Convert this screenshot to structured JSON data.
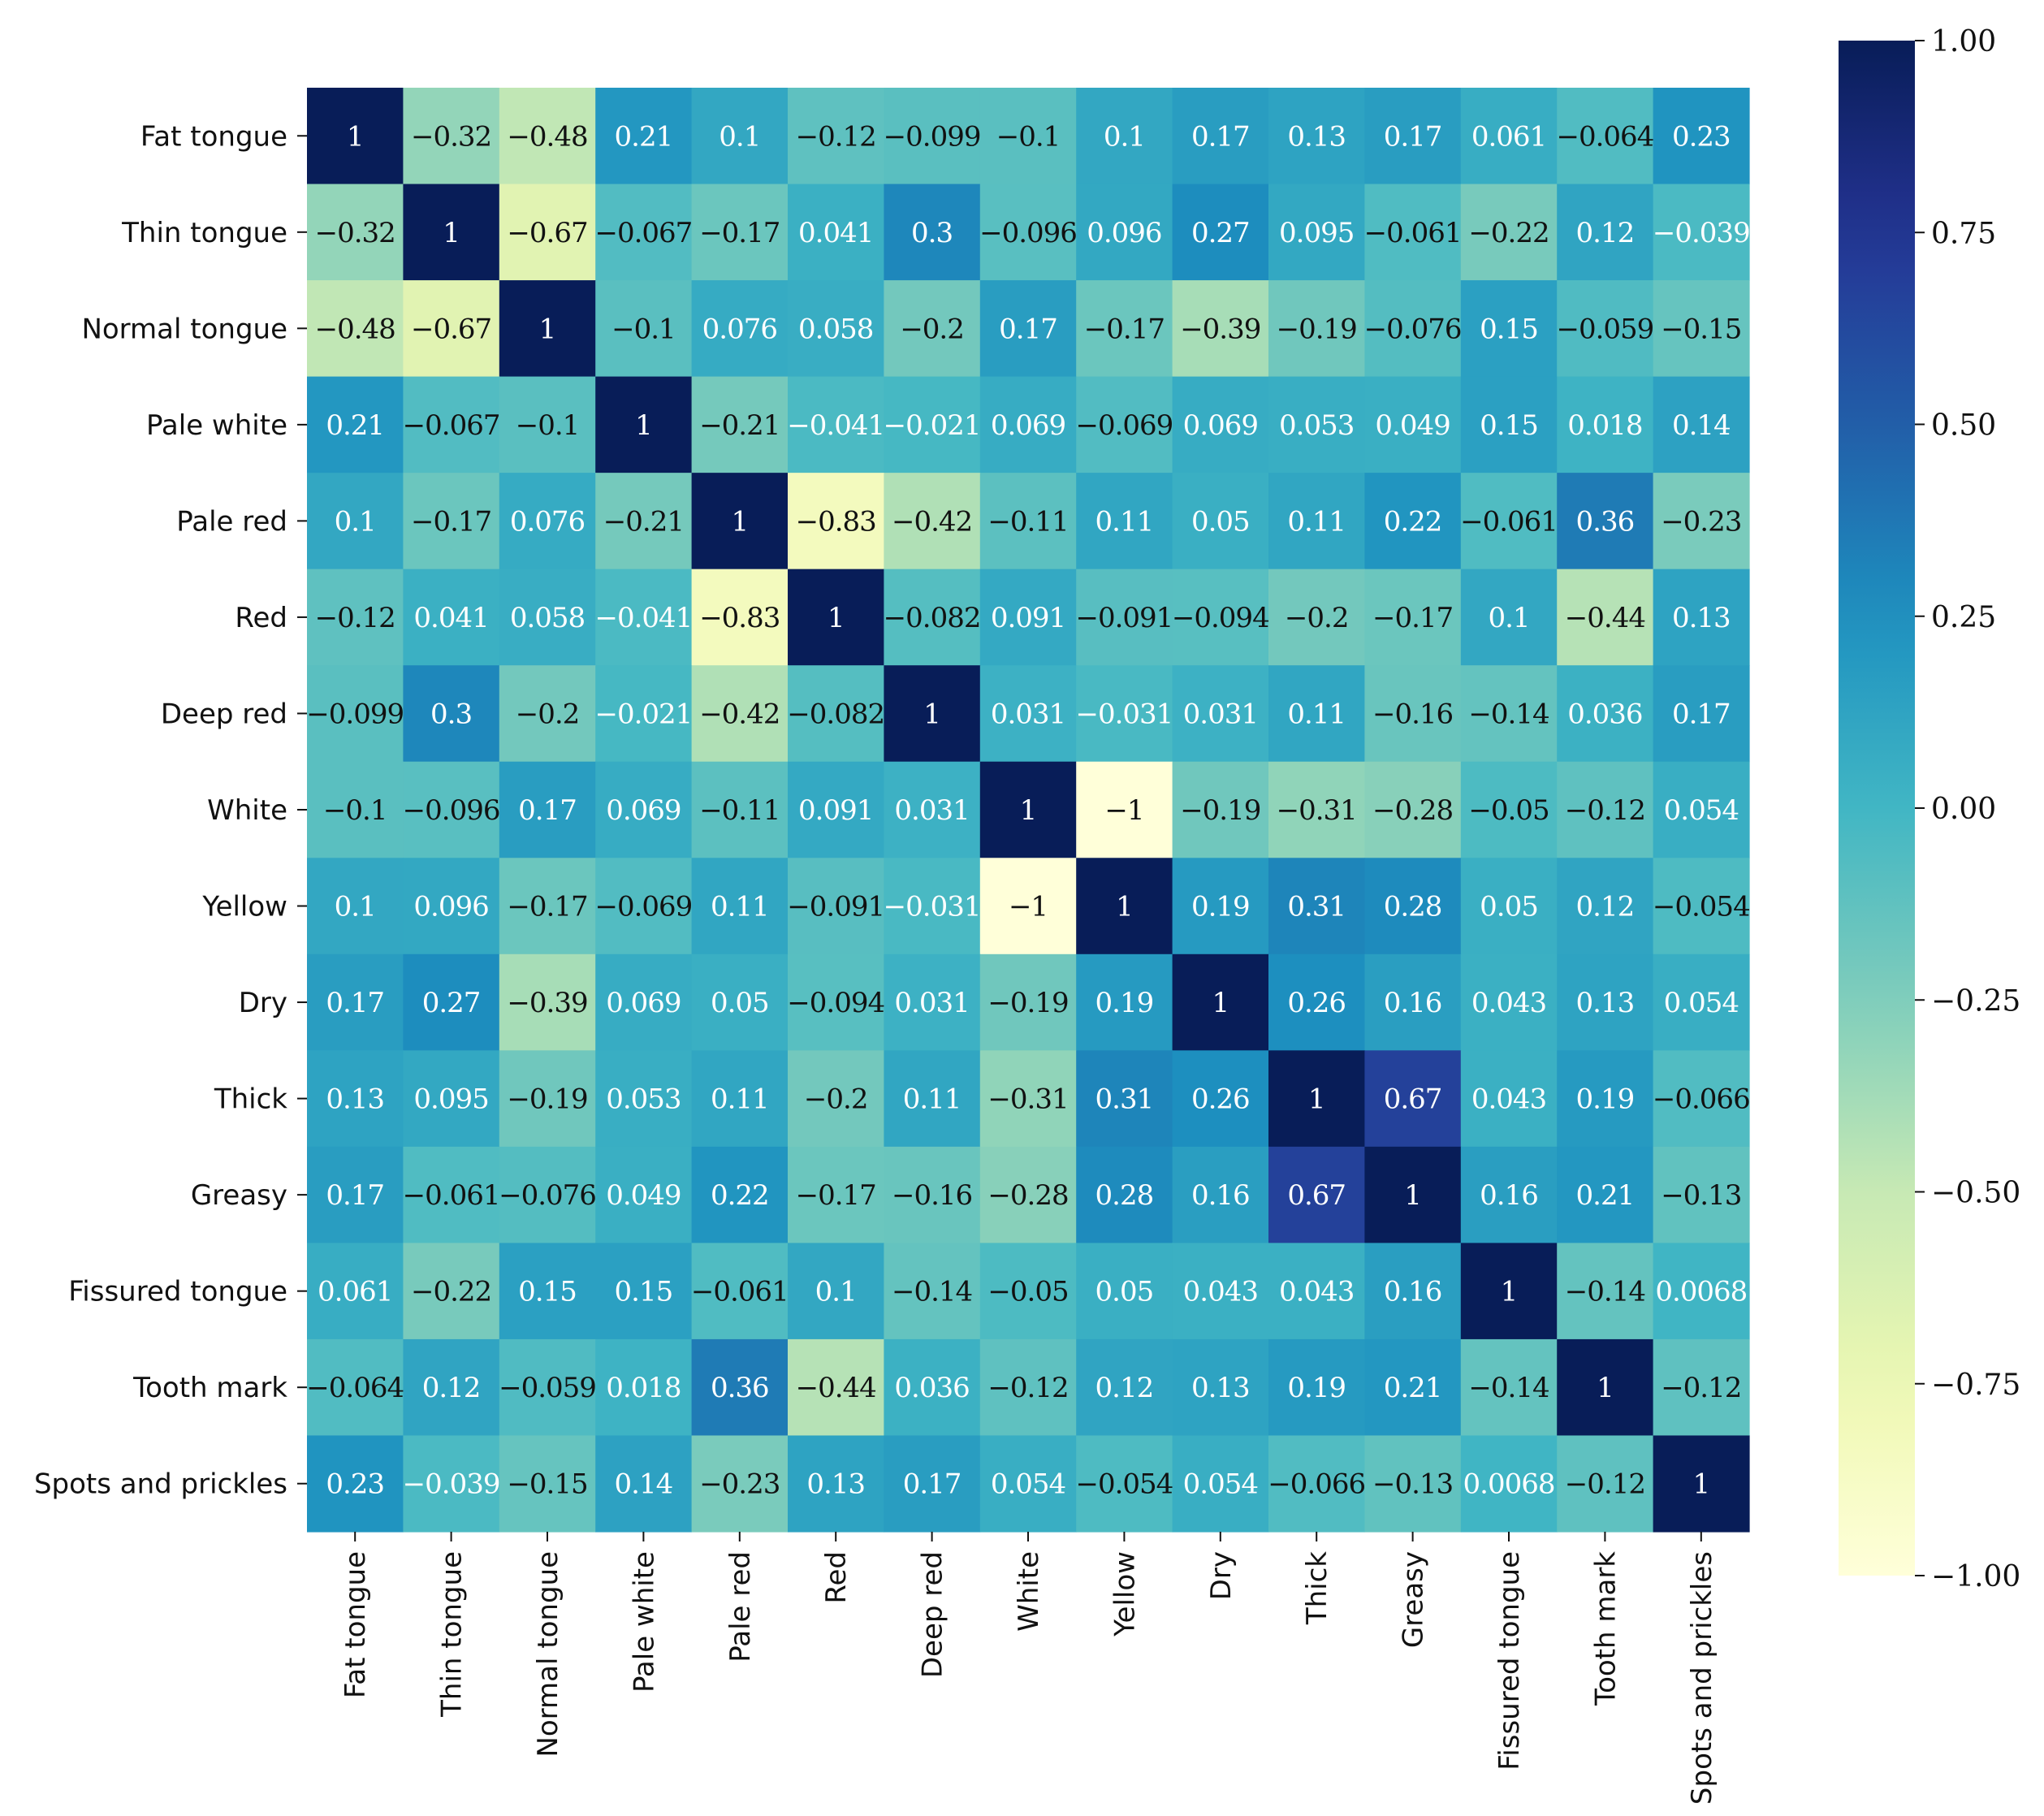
{
  "chart_data": {
    "type": "heatmap",
    "title": "",
    "xlabel": "",
    "ylabel": "",
    "labels": [
      "Fat tongue",
      "Thin tongue",
      "Normal tongue",
      "Pale white",
      "Pale red",
      "Red",
      "Deep red",
      "White",
      "Yellow",
      "Dry",
      "Thick",
      "Greasy",
      "Fissured tongue",
      "Tooth mark",
      "Spots and prickles"
    ],
    "values": [
      [
        1,
        -0.32,
        -0.48,
        0.21,
        0.1,
        -0.12,
        -0.099,
        -0.1,
        0.1,
        0.17,
        0.13,
        0.17,
        0.061,
        -0.064,
        0.23
      ],
      [
        -0.32,
        1,
        -0.67,
        -0.067,
        -0.17,
        0.041,
        0.3,
        -0.096,
        0.096,
        0.27,
        0.095,
        -0.061,
        -0.22,
        0.12,
        -0.039
      ],
      [
        -0.48,
        -0.67,
        1,
        -0.1,
        0.076,
        0.058,
        -0.2,
        0.17,
        -0.17,
        -0.39,
        -0.19,
        -0.076,
        0.15,
        -0.059,
        -0.15
      ],
      [
        0.21,
        -0.067,
        -0.1,
        1,
        -0.21,
        -0.041,
        -0.021,
        0.069,
        -0.069,
        0.069,
        0.053,
        0.049,
        0.15,
        0.018,
        0.14
      ],
      [
        0.1,
        -0.17,
        0.076,
        -0.21,
        1,
        -0.83,
        -0.42,
        -0.11,
        0.11,
        0.05,
        0.11,
        0.22,
        -0.061,
        0.36,
        -0.23
      ],
      [
        -0.12,
        0.041,
        0.058,
        -0.041,
        -0.83,
        1,
        -0.082,
        0.091,
        -0.091,
        -0.094,
        -0.2,
        -0.17,
        0.1,
        -0.44,
        0.13
      ],
      [
        -0.099,
        0.3,
        -0.2,
        -0.021,
        -0.42,
        -0.082,
        1,
        0.031,
        -0.031,
        0.031,
        0.11,
        -0.16,
        -0.14,
        0.036,
        0.17
      ],
      [
        -0.1,
        -0.096,
        0.17,
        0.069,
        -0.11,
        0.091,
        0.031,
        1,
        -1,
        -0.19,
        -0.31,
        -0.28,
        -0.05,
        -0.12,
        0.054
      ],
      [
        0.1,
        0.096,
        -0.17,
        -0.069,
        0.11,
        -0.091,
        -0.031,
        -1,
        1,
        0.19,
        0.31,
        0.28,
        0.05,
        0.12,
        -0.054
      ],
      [
        0.17,
        0.27,
        -0.39,
        0.069,
        0.05,
        -0.094,
        0.031,
        -0.19,
        0.19,
        1,
        0.26,
        0.16,
        0.043,
        0.13,
        0.054
      ],
      [
        0.13,
        0.095,
        -0.19,
        0.053,
        0.11,
        -0.2,
        0.11,
        -0.31,
        0.31,
        0.26,
        1,
        0.67,
        0.043,
        0.19,
        -0.066
      ],
      [
        0.17,
        -0.061,
        -0.076,
        0.049,
        0.22,
        -0.17,
        -0.16,
        -0.28,
        0.28,
        0.16,
        0.67,
        1,
        0.16,
        0.21,
        -0.13
      ],
      [
        0.061,
        -0.22,
        0.15,
        0.15,
        -0.061,
        0.1,
        -0.14,
        -0.05,
        0.05,
        0.043,
        0.043,
        0.16,
        1,
        -0.14,
        0.0068
      ],
      [
        -0.064,
        0.12,
        -0.059,
        0.018,
        0.36,
        -0.44,
        0.036,
        -0.12,
        0.12,
        0.13,
        0.19,
        0.21,
        -0.14,
        1,
        -0.12
      ],
      [
        0.23,
        -0.039,
        -0.15,
        0.14,
        -0.23,
        0.13,
        0.17,
        0.054,
        -0.054,
        0.054,
        -0.066,
        -0.13,
        0.0068,
        -0.12,
        1
      ]
    ],
    "colormap": "YlGnBu",
    "color_range": [
      -1,
      1
    ],
    "colorbar_ticks": [
      "1.00",
      "0.75",
      "0.50",
      "0.25",
      "0.00",
      "−0.25",
      "−0.50",
      "−0.75",
      "−1.00"
    ],
    "colorbar_tick_values": [
      1,
      0.75,
      0.5,
      0.25,
      0,
      -0.25,
      -0.5,
      -0.75,
      -1
    ],
    "colorbar_position": "right",
    "grid": false,
    "annotated": true
  }
}
